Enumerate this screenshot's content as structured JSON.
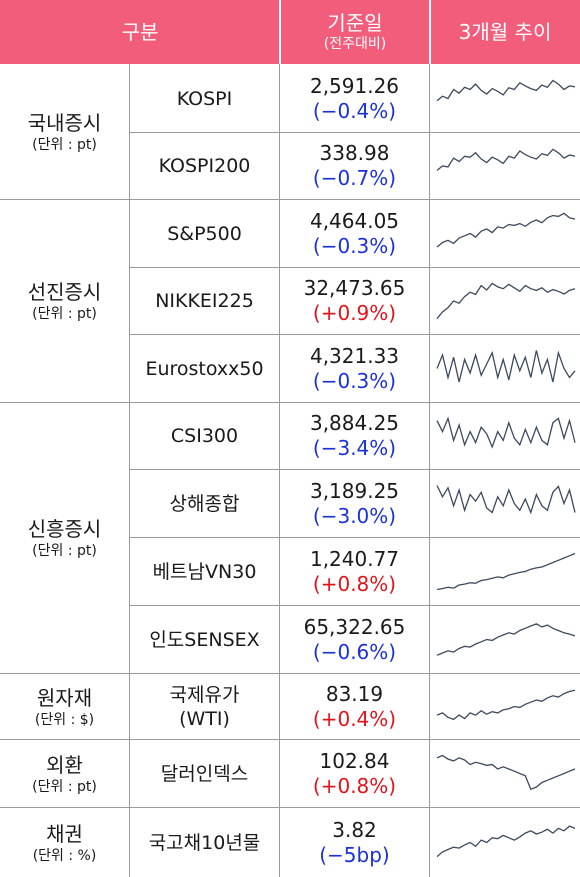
{
  "header": {
    "category": "구분",
    "reference": "기준일",
    "reference_sub": "(전주대비)",
    "trend": "3개월 추이"
  },
  "colors": {
    "header_bg": "#f35d7c",
    "negative": "#1c31d8",
    "positive": "#e1141b",
    "sparkline": "#3c4a5e"
  },
  "groups": [
    {
      "title": "국내증시",
      "unit": "(단위 : pt)"
    },
    {
      "title": "선진증시",
      "unit": "(단위 : pt)"
    },
    {
      "title": "신흥증시",
      "unit": "(단위 : pt)"
    },
    {
      "title": "원자재",
      "unit": "(단위 : $)"
    },
    {
      "title": "외환",
      "unit": "(단위 : pt)"
    },
    {
      "title": "채권",
      "unit": "(단위 : %)"
    }
  ],
  "rows": [
    {
      "name": "KOSPI",
      "value": "2,591.26",
      "change": "(−0.4%)",
      "direction": "neg",
      "trend": [
        0.45,
        0.55,
        0.5,
        0.7,
        0.62,
        0.75,
        0.7,
        0.82,
        0.68,
        0.6,
        0.72,
        0.66,
        0.58,
        0.74,
        0.7,
        0.85,
        0.78,
        0.72,
        0.68,
        0.8,
        0.75,
        0.9,
        0.82,
        0.7,
        0.78,
        0.76
      ]
    },
    {
      "name": "KOSPI200",
      "value": "338.98",
      "change": "(−0.7%)",
      "direction": "neg",
      "trend": [
        0.4,
        0.5,
        0.48,
        0.68,
        0.6,
        0.72,
        0.7,
        0.8,
        0.66,
        0.58,
        0.7,
        0.64,
        0.56,
        0.72,
        0.68,
        0.84,
        0.76,
        0.7,
        0.66,
        0.78,
        0.74,
        0.88,
        0.8,
        0.68,
        0.75,
        0.72
      ]
    },
    {
      "name": "S&P500",
      "value": "4,464.05",
      "change": "(−0.3%)",
      "direction": "neg",
      "trend": [
        0.2,
        0.3,
        0.35,
        0.28,
        0.4,
        0.45,
        0.5,
        0.42,
        0.55,
        0.6,
        0.52,
        0.65,
        0.62,
        0.7,
        0.68,
        0.72,
        0.66,
        0.75,
        0.8,
        0.74,
        0.85,
        0.9,
        0.88,
        0.95,
        0.85,
        0.82
      ]
    },
    {
      "name": "NIKKEI225",
      "value": "32,473.65",
      "change": "(+0.9%)",
      "direction": "pos",
      "trend": [
        0.1,
        0.25,
        0.35,
        0.5,
        0.45,
        0.6,
        0.7,
        0.65,
        0.85,
        0.75,
        0.9,
        0.82,
        0.78,
        0.88,
        0.8,
        0.72,
        0.85,
        0.78,
        0.74,
        0.8,
        0.7,
        0.76,
        0.72,
        0.66,
        0.74,
        0.78
      ]
    },
    {
      "name": "Eurostoxx50",
      "value": "4,321.33",
      "change": "(−0.3%)",
      "direction": "neg",
      "trend": [
        0.5,
        0.8,
        0.3,
        0.75,
        0.2,
        0.7,
        0.4,
        0.8,
        0.35,
        0.6,
        0.85,
        0.3,
        0.7,
        0.25,
        0.8,
        0.45,
        0.75,
        0.3,
        0.9,
        0.4,
        0.7,
        0.2,
        0.85,
        0.5,
        0.3,
        0.45
      ]
    },
    {
      "name": "CSI300",
      "value": "3,884.25",
      "change": "(−3.4%)",
      "direction": "neg",
      "trend": [
        0.85,
        0.6,
        0.9,
        0.4,
        0.75,
        0.3,
        0.6,
        0.35,
        0.7,
        0.55,
        0.25,
        0.6,
        0.4,
        0.8,
        0.45,
        0.3,
        0.65,
        0.35,
        0.7,
        0.4,
        0.3,
        0.8,
        0.9,
        0.45,
        0.85,
        0.35
      ]
    },
    {
      "name": "상해종합",
      "value": "3,189.25",
      "change": "(−3.0%)",
      "direction": "neg",
      "trend": [
        0.9,
        0.65,
        0.85,
        0.45,
        0.8,
        0.35,
        0.7,
        0.55,
        0.75,
        0.4,
        0.3,
        0.65,
        0.45,
        0.8,
        0.5,
        0.35,
        0.6,
        0.3,
        0.7,
        0.45,
        0.35,
        0.75,
        0.88,
        0.5,
        0.8,
        0.3
      ]
    },
    {
      "name": "베트남VN30",
      "value": "1,240.77",
      "change": "(+0.8%)",
      "direction": "pos",
      "trend": [
        0.1,
        0.12,
        0.15,
        0.13,
        0.2,
        0.22,
        0.25,
        0.24,
        0.3,
        0.32,
        0.35,
        0.38,
        0.36,
        0.42,
        0.45,
        0.48,
        0.5,
        0.55,
        0.58,
        0.6,
        0.65,
        0.7,
        0.75,
        0.8,
        0.85,
        0.9
      ]
    },
    {
      "name": "인도SENSEX",
      "value": "65,322.65",
      "change": "(−0.6%)",
      "direction": "neg",
      "trend": [
        0.15,
        0.2,
        0.25,
        0.22,
        0.3,
        0.35,
        0.33,
        0.4,
        0.45,
        0.5,
        0.48,
        0.55,
        0.6,
        0.65,
        0.62,
        0.7,
        0.75,
        0.8,
        0.85,
        0.78,
        0.82,
        0.75,
        0.7,
        0.65,
        0.62,
        0.58
      ]
    },
    {
      "name": "국제유가\n(WTI)",
      "value": "83.19",
      "change": "(+0.4%)",
      "direction": "pos",
      "trend": [
        0.3,
        0.35,
        0.25,
        0.2,
        0.3,
        0.22,
        0.35,
        0.3,
        0.4,
        0.32,
        0.38,
        0.35,
        0.42,
        0.45,
        0.5,
        0.48,
        0.55,
        0.6,
        0.65,
        0.62,
        0.7,
        0.75,
        0.72,
        0.8,
        0.85,
        0.88
      ]
    },
    {
      "name": "달러인덱스",
      "value": "102.84",
      "change": "(+0.8%)",
      "direction": "pos",
      "trend": [
        0.85,
        0.9,
        0.82,
        0.78,
        0.85,
        0.8,
        0.7,
        0.75,
        0.72,
        0.68,
        0.7,
        0.6,
        0.65,
        0.6,
        0.55,
        0.5,
        0.45,
        0.15,
        0.2,
        0.3,
        0.35,
        0.4,
        0.45,
        0.5,
        0.55,
        0.6
      ]
    },
    {
      "name": "국고채10년물",
      "value": "3.82",
      "change": "(−5bp)",
      "direction": "neg",
      "trend": [
        0.2,
        0.3,
        0.35,
        0.4,
        0.38,
        0.45,
        0.5,
        0.42,
        0.55,
        0.5,
        0.6,
        0.58,
        0.65,
        0.6,
        0.55,
        0.62,
        0.7,
        0.75,
        0.68,
        0.72,
        0.78,
        0.7,
        0.8,
        0.75,
        0.85,
        0.8
      ]
    }
  ]
}
